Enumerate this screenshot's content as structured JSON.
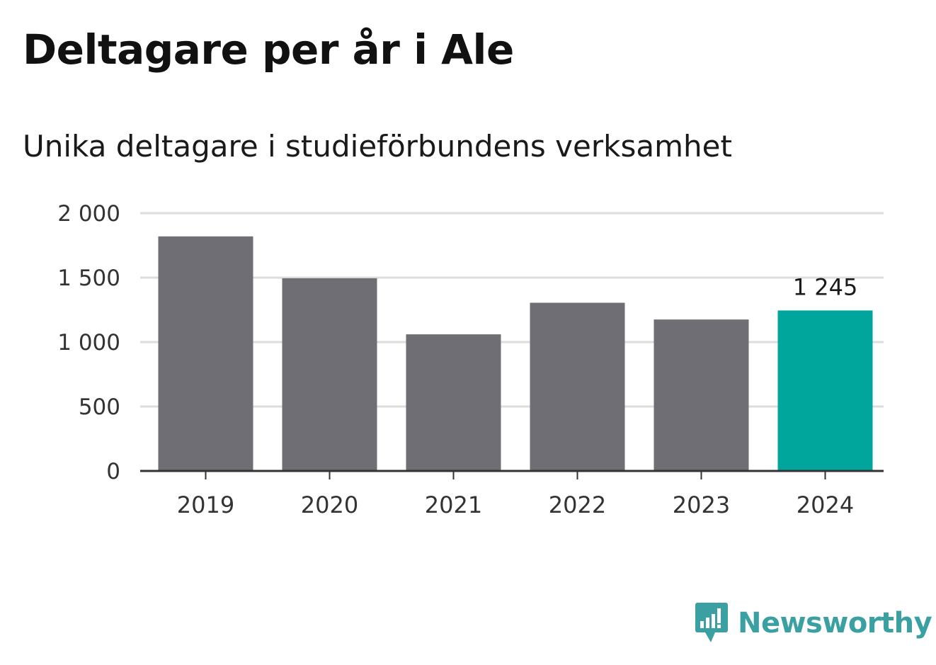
{
  "header": {
    "title": "Deltagare per år i Ale",
    "subtitle": "Unika deltagare i studieförbundens verksamhet"
  },
  "brand": {
    "name": "Newsworthy",
    "icon": "newsworthy-logo-icon"
  },
  "colors": {
    "bar": "#6f6e74",
    "highlight": "#00a59b",
    "grid": "#dddddd",
    "axis": "#333333",
    "brand": "#3aa0a1"
  },
  "chart_data": {
    "type": "bar",
    "title": "Deltagare per år i Ale",
    "subtitle": "Unika deltagare i studieförbundens verksamhet",
    "xlabel": "",
    "ylabel": "",
    "categories": [
      "2019",
      "2020",
      "2021",
      "2022",
      "2023",
      "2024"
    ],
    "values": [
      1820,
      1495,
      1060,
      1305,
      1175,
      1245
    ],
    "highlight_index": 5,
    "ylim": [
      0,
      2000
    ],
    "yticks": [
      0,
      500,
      1000,
      1500,
      2000
    ],
    "ytick_labels": [
      "0",
      "500",
      "1 000",
      "1 500",
      "2 000"
    ],
    "data_labels": [
      {
        "index": 5,
        "text": "1 245"
      }
    ],
    "grid": true,
    "legend": "none"
  }
}
